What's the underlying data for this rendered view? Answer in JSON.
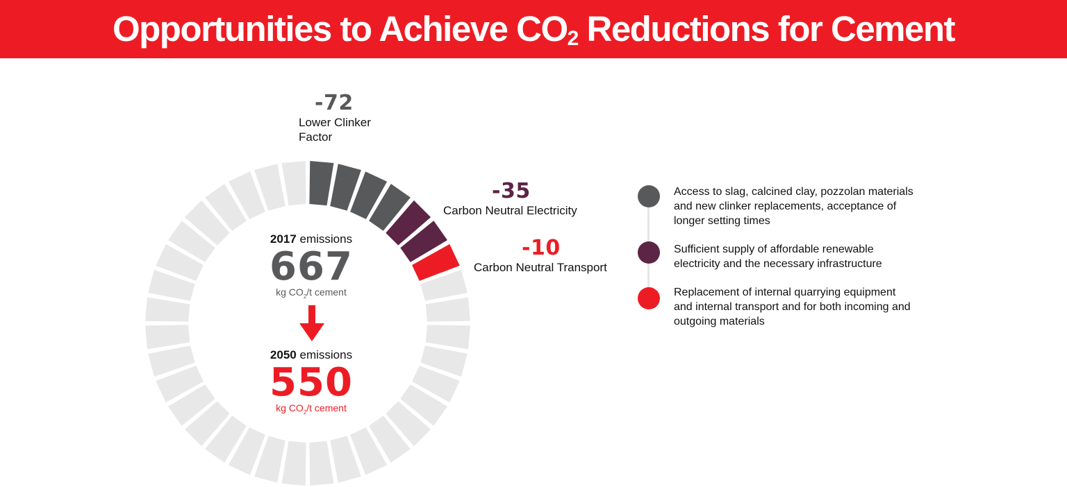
{
  "header": {
    "title_part1": "Opportunities to Achieve CO",
    "title_sub": "2",
    "title_part2": " Reductions for Cement"
  },
  "colors": {
    "banner": "#ed1c24",
    "ring_empty": "#e8e8e8",
    "clinker": "#58595b",
    "electricity": "#5c2445",
    "transport": "#ed1c24"
  },
  "chart_data": {
    "type": "pie",
    "ring_segments": 36,
    "filled_segments": [
      {
        "name": "Lower Clinker Factor",
        "count": 4,
        "color": "#58595b"
      },
      {
        "name": "Carbon Neutral Electricity",
        "count": 2,
        "color": "#5c2445"
      },
      {
        "name": "Carbon Neutral Transport",
        "count": 1,
        "color": "#ed1c24"
      }
    ],
    "callouts": [
      {
        "value": "-72",
        "label_lines": [
          "Lower Clinker",
          "Factor"
        ],
        "color": "#58595b"
      },
      {
        "value": "-35",
        "label_lines": [
          "Carbon Neutral Electricity"
        ],
        "color": "#5c2445"
      },
      {
        "value": "-10",
        "label_lines": [
          "Carbon Neutral Transport"
        ],
        "color": "#ed1c24"
      }
    ],
    "center": {
      "start": {
        "year": "2017",
        "label": "emissions",
        "value": "667",
        "unit_pre": "kg CO",
        "unit_sub": "2",
        "unit_post": "/t cement"
      },
      "end": {
        "year": "2050",
        "label": "emissions",
        "value": "550",
        "unit_pre": "kg CO",
        "unit_sub": "2",
        "unit_post": "/t cement"
      }
    }
  },
  "legend": [
    {
      "color": "#58595b",
      "lines": [
        "Access to slag, calcined clay, pozzolan materials",
        "and new clinker replacements, acceptance of",
        "longer setting times"
      ]
    },
    {
      "color": "#5c2445",
      "lines": [
        "Sufficient supply of affordable renewable",
        "electricity and the necessary infrastructure"
      ]
    },
    {
      "color": "#ed1c24",
      "lines": [
        "Replacement of internal quarrying equipment",
        "and internal transport and for both incoming and",
        "outgoing materials"
      ]
    }
  ]
}
